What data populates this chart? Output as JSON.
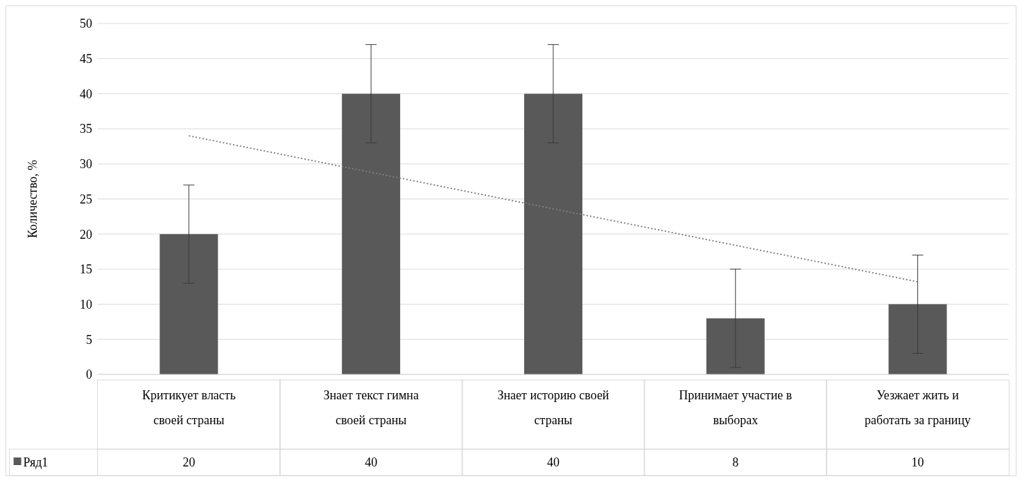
{
  "chart_data": {
    "type": "bar",
    "ylabel": "Количество, %",
    "categories": [
      "Критикует власть своей страны",
      "Знает текст гимна своей страны",
      "Знает историю своей страны",
      "Принимает участие в выборах",
      "Уезжает жить и работать за границу"
    ],
    "series": [
      {
        "name": "Ряд1",
        "color": "#595959",
        "values": [
          20,
          40,
          40,
          8,
          10
        ],
        "value_labels": [
          "20",
          "40",
          "40",
          "8",
          "10"
        ],
        "errors": [
          7,
          7,
          7,
          7,
          7
        ]
      },
      {
        "type": "line",
        "color": "#808080",
        "line_style": "dotted",
        "marker": "none",
        "x": [
          "Критикует власть своей страны",
          "Уезжает жить и работать за границу"
        ],
        "values": [
          34,
          13.2
        ]
      }
    ],
    "ylim": [
      0,
      50
    ],
    "yticks": [
      0,
      5,
      10,
      15,
      20,
      25,
      30,
      35,
      40,
      45,
      50
    ],
    "grid": "y",
    "legend": "bottom"
  }
}
